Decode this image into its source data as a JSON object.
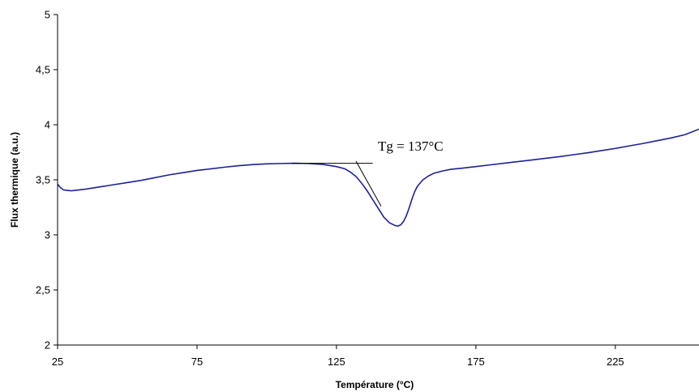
{
  "chart_data": {
    "type": "line",
    "title": "",
    "xlabel": "Température (°C)",
    "ylabel": "Flux thermique (a.u.)",
    "xlim": [
      25,
      255
    ],
    "ylim": [
      2,
      5
    ],
    "x_ticks": [
      "25",
      "75",
      "125",
      "175",
      "225"
    ],
    "y_ticks": [
      "2",
      "2,5",
      "3",
      "3,5",
      "4",
      "4,5",
      "5"
    ],
    "grid": false,
    "legend": "none",
    "series": [
      {
        "color": "#1f1f9a",
        "x": [
          25,
          26,
          27,
          28,
          30,
          35,
          40,
          45,
          50,
          55,
          60,
          65,
          70,
          75,
          80,
          85,
          90,
          95,
          100,
          105,
          110,
          115,
          120,
          125,
          128,
          130,
          132,
          134,
          136,
          138,
          140,
          142,
          144,
          146,
          147,
          148,
          149,
          150,
          151,
          152,
          153,
          154,
          156,
          158,
          160,
          163,
          166,
          170,
          175,
          180,
          185,
          190,
          195,
          200,
          205,
          210,
          215,
          220,
          225,
          230,
          235,
          240,
          245,
          250,
          255
        ],
        "y": [
          3.46,
          3.43,
          3.41,
          3.405,
          3.4,
          3.415,
          3.435,
          3.455,
          3.475,
          3.495,
          3.52,
          3.545,
          3.565,
          3.585,
          3.6,
          3.615,
          3.628,
          3.638,
          3.645,
          3.648,
          3.65,
          3.648,
          3.64,
          3.62,
          3.6,
          3.57,
          3.53,
          3.47,
          3.4,
          3.32,
          3.24,
          3.16,
          3.11,
          3.085,
          3.08,
          3.09,
          3.12,
          3.17,
          3.24,
          3.32,
          3.39,
          3.44,
          3.5,
          3.535,
          3.56,
          3.58,
          3.595,
          3.605,
          3.62,
          3.635,
          3.65,
          3.665,
          3.68,
          3.695,
          3.71,
          3.728,
          3.745,
          3.765,
          3.785,
          3.808,
          3.83,
          3.855,
          3.88,
          3.91,
          3.96
        ]
      }
    ],
    "annotation": {
      "text": "Tg = 137°C",
      "baseline": {
        "x": [
          109,
          138
        ],
        "y": [
          3.65,
          3.65
        ]
      },
      "tangent": {
        "x": [
          132,
          141
        ],
        "y": [
          3.67,
          3.26
        ]
      }
    }
  }
}
